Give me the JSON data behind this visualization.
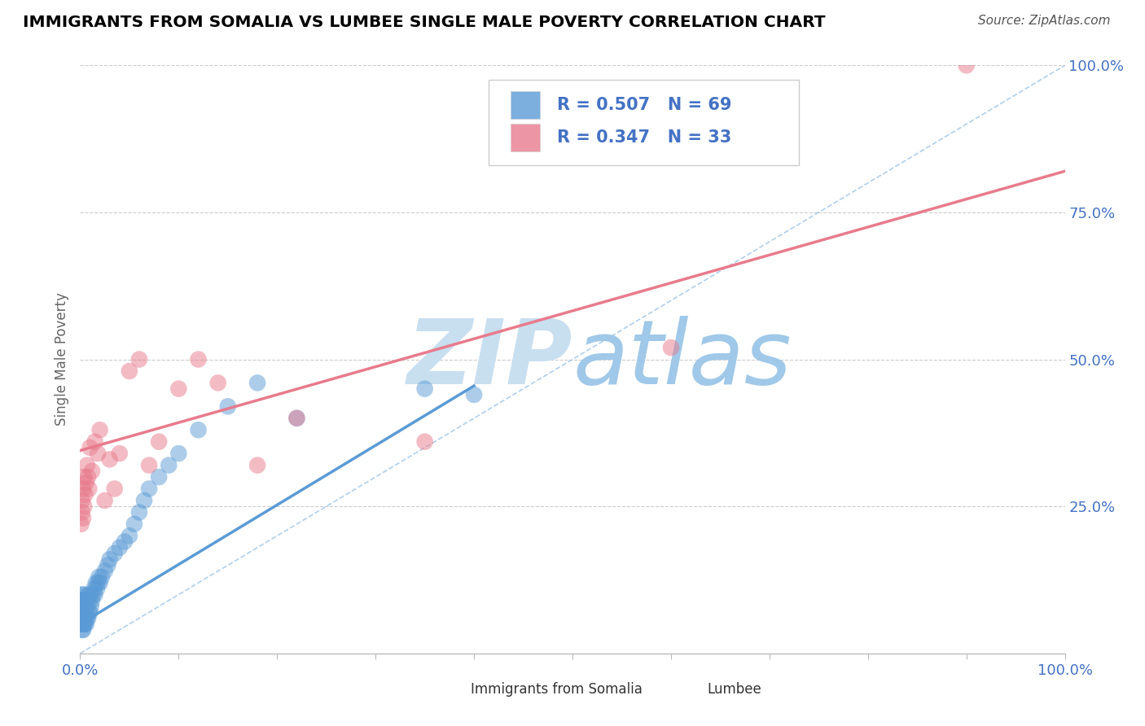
{
  "title": "IMMIGRANTS FROM SOMALIA VS LUMBEE SINGLE MALE POVERTY CORRELATION CHART",
  "source": "Source: ZipAtlas.com",
  "ylabel": "Single Male Poverty",
  "watermark": "ZIPatlas",
  "xlim": [
    0.0,
    1.0
  ],
  "ylim": [
    0.0,
    1.0
  ],
  "xtick_positions": [
    0.0,
    0.1,
    0.2,
    0.3,
    0.4,
    0.5,
    0.6,
    0.7,
    0.8,
    0.9,
    1.0
  ],
  "xtick_labels_show": [
    "0.0%",
    "",
    "",
    "",
    "",
    "",
    "",
    "",
    "",
    "",
    "100.0%"
  ],
  "ytick_values": [
    0.25,
    0.5,
    0.75,
    1.0
  ],
  "ytick_labels": [
    "25.0%",
    "50.0%",
    "75.0%",
    "100.0%"
  ],
  "legend_entries": [
    {
      "label": "Immigrants from Somalia",
      "color": "#aec6e8",
      "R": "0.507",
      "N": "69"
    },
    {
      "label": "Lumbee",
      "color": "#f4b8c1",
      "R": "0.347",
      "N": "33"
    }
  ],
  "blue_scatter_x": [
    0.001,
    0.001,
    0.001,
    0.001,
    0.001,
    0.002,
    0.002,
    0.002,
    0.002,
    0.002,
    0.002,
    0.002,
    0.003,
    0.003,
    0.003,
    0.003,
    0.003,
    0.003,
    0.003,
    0.004,
    0.004,
    0.004,
    0.004,
    0.005,
    0.005,
    0.005,
    0.005,
    0.006,
    0.006,
    0.006,
    0.007,
    0.007,
    0.008,
    0.008,
    0.009,
    0.009,
    0.01,
    0.01,
    0.011,
    0.012,
    0.013,
    0.014,
    0.015,
    0.016,
    0.017,
    0.018,
    0.019,
    0.02,
    0.022,
    0.025,
    0.028,
    0.03,
    0.035,
    0.04,
    0.045,
    0.05,
    0.055,
    0.06,
    0.065,
    0.07,
    0.08,
    0.09,
    0.1,
    0.12,
    0.15,
    0.18,
    0.22,
    0.35,
    0.4
  ],
  "blue_scatter_y": [
    0.05,
    0.06,
    0.07,
    0.08,
    0.09,
    0.04,
    0.05,
    0.06,
    0.07,
    0.08,
    0.09,
    0.1,
    0.04,
    0.05,
    0.06,
    0.07,
    0.08,
    0.09,
    0.1,
    0.05,
    0.06,
    0.07,
    0.08,
    0.05,
    0.06,
    0.07,
    0.09,
    0.05,
    0.07,
    0.09,
    0.06,
    0.08,
    0.06,
    0.1,
    0.07,
    0.09,
    0.07,
    0.1,
    0.08,
    0.09,
    0.1,
    0.11,
    0.1,
    0.12,
    0.11,
    0.12,
    0.13,
    0.12,
    0.13,
    0.14,
    0.15,
    0.16,
    0.17,
    0.18,
    0.19,
    0.2,
    0.22,
    0.24,
    0.26,
    0.28,
    0.3,
    0.32,
    0.34,
    0.38,
    0.42,
    0.46,
    0.4,
    0.45,
    0.44
  ],
  "pink_scatter_x": [
    0.001,
    0.002,
    0.002,
    0.003,
    0.003,
    0.004,
    0.004,
    0.005,
    0.006,
    0.007,
    0.008,
    0.009,
    0.01,
    0.012,
    0.015,
    0.018,
    0.02,
    0.025,
    0.03,
    0.035,
    0.04,
    0.05,
    0.06,
    0.07,
    0.08,
    0.1,
    0.12,
    0.14,
    0.18,
    0.22,
    0.35,
    0.6,
    0.9
  ],
  "pink_scatter_y": [
    0.22,
    0.24,
    0.26,
    0.23,
    0.28,
    0.25,
    0.3,
    0.27,
    0.29,
    0.32,
    0.3,
    0.28,
    0.35,
    0.31,
    0.36,
    0.34,
    0.38,
    0.26,
    0.33,
    0.28,
    0.34,
    0.48,
    0.5,
    0.32,
    0.36,
    0.45,
    0.5,
    0.46,
    0.32,
    0.4,
    0.36,
    0.52,
    1.0
  ],
  "blue_line": {
    "x0": 0.0,
    "y0": 0.05,
    "x1": 0.4,
    "y1": 0.455
  },
  "pink_line": {
    "x0": 0.0,
    "y0": 0.345,
    "x1": 1.0,
    "y1": 0.82
  },
  "ref_line": {
    "x0": 0.0,
    "y0": 0.0,
    "x1": 1.0,
    "y1": 1.0
  },
  "blue_color": "#5b9bd5",
  "pink_color": "#e87b8d",
  "ref_line_color": "#9dc3e6",
  "grid_color": "#cccccc",
  "watermark_color_zip": "#c8dff0",
  "watermark_color_atlas": "#a0c8e8",
  "title_color": "#000000",
  "source_color": "#555555",
  "axis_label_color": "#666666",
  "tick_color": "#4472c4",
  "background_color": "#ffffff"
}
